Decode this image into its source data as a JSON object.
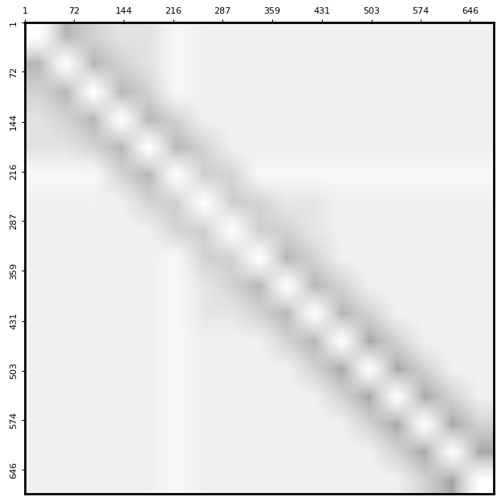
{
  "chart_data": {
    "type": "heatmap",
    "xlim": [
      1,
      680
    ],
    "ylim": [
      680,
      1
    ],
    "xticks": [
      1,
      72,
      144,
      216,
      287,
      359,
      431,
      503,
      574,
      646
    ],
    "yticks": [
      1,
      72,
      144,
      216,
      287,
      359,
      431,
      503,
      574,
      646
    ],
    "color_range": [
      0,
      100
    ],
    "cells": [
      [
        0,
        40,
        28,
        20,
        20,
        6,
        12,
        12,
        12,
        12,
        12,
        12,
        12,
        12,
        12,
        12,
        12
      ],
      [
        40,
        0,
        40,
        28,
        20,
        6,
        12,
        12,
        12,
        12,
        12,
        12,
        12,
        12,
        12,
        12,
        12
      ],
      [
        28,
        40,
        0,
        40,
        28,
        6,
        12,
        12,
        12,
        12,
        12,
        12,
        12,
        12,
        12,
        12,
        12
      ],
      [
        20,
        28,
        40,
        0,
        40,
        28,
        12,
        12,
        12,
        12,
        12,
        12,
        12,
        12,
        12,
        12,
        12
      ],
      [
        20,
        20,
        28,
        40,
        0,
        40,
        28,
        12,
        12,
        12,
        12,
        12,
        12,
        12,
        12,
        12,
        12
      ],
      [
        6,
        6,
        6,
        28,
        40,
        0,
        30,
        28,
        6,
        6,
        6,
        6,
        6,
        6,
        6,
        6,
        6
      ],
      [
        12,
        12,
        12,
        12,
        28,
        30,
        0,
        30,
        28,
        18,
        18,
        12,
        12,
        12,
        12,
        12,
        12
      ],
      [
        12,
        12,
        12,
        12,
        12,
        28,
        30,
        0,
        30,
        28,
        18,
        12,
        12,
        12,
        12,
        12,
        12
      ],
      [
        12,
        12,
        12,
        12,
        12,
        6,
        28,
        30,
        0,
        40,
        28,
        12,
        12,
        12,
        12,
        12,
        12
      ],
      [
        12,
        12,
        12,
        12,
        12,
        6,
        18,
        28,
        40,
        0,
        40,
        28,
        12,
        12,
        12,
        12,
        12
      ],
      [
        12,
        12,
        12,
        12,
        12,
        6,
        18,
        18,
        28,
        40,
        0,
        40,
        28,
        12,
        12,
        12,
        12
      ],
      [
        12,
        12,
        12,
        12,
        12,
        6,
        12,
        12,
        12,
        28,
        40,
        0,
        45,
        28,
        12,
        12,
        12
      ],
      [
        12,
        12,
        12,
        12,
        12,
        6,
        12,
        12,
        12,
        12,
        28,
        45,
        0,
        45,
        28,
        12,
        12
      ],
      [
        12,
        12,
        12,
        12,
        12,
        6,
        12,
        12,
        12,
        12,
        12,
        28,
        45,
        0,
        45,
        28,
        12
      ],
      [
        12,
        12,
        12,
        12,
        12,
        6,
        12,
        12,
        12,
        12,
        12,
        12,
        28,
        45,
        0,
        45,
        28
      ],
      [
        12,
        12,
        12,
        12,
        12,
        6,
        12,
        12,
        12,
        12,
        12,
        12,
        12,
        28,
        45,
        0,
        45
      ],
      [
        12,
        12,
        12,
        12,
        12,
        6,
        12,
        12,
        12,
        12,
        12,
        12,
        12,
        12,
        28,
        45,
        0
      ]
    ]
  }
}
